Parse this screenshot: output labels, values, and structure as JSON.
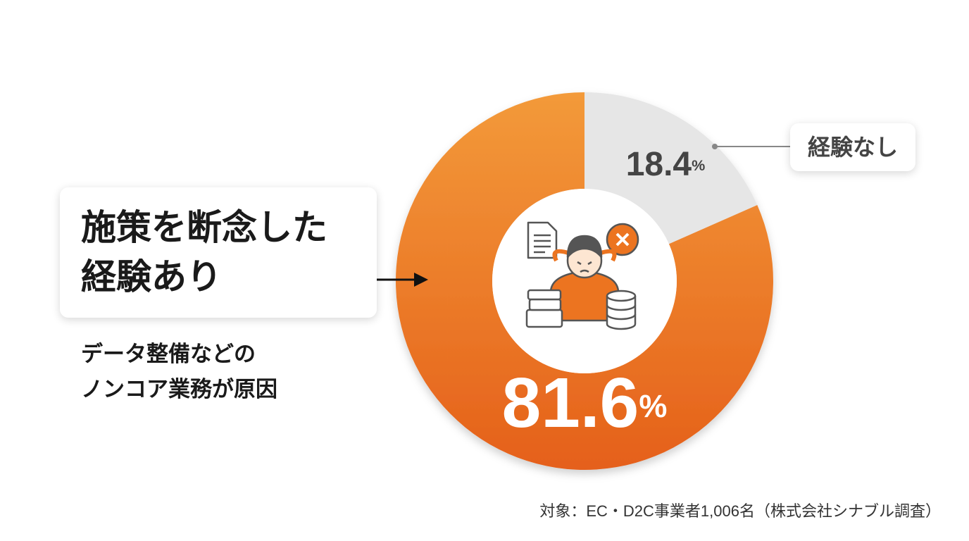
{
  "chart_data": {
    "type": "pie",
    "donut": true,
    "categories": [
      "施策を断念した経験あり",
      "経験なし"
    ],
    "values": [
      81.6,
      18.4
    ],
    "value_labels": [
      "81.6%",
      "18.4%"
    ],
    "colors": [
      "#ec7420",
      "#e6e6e6"
    ],
    "annotation": [
      "データ整備などの",
      "ノンコア業務が原因"
    ],
    "footnote": "対象：EC・D2C事業者1,006名（株式会社シナブル調査）"
  }
}
